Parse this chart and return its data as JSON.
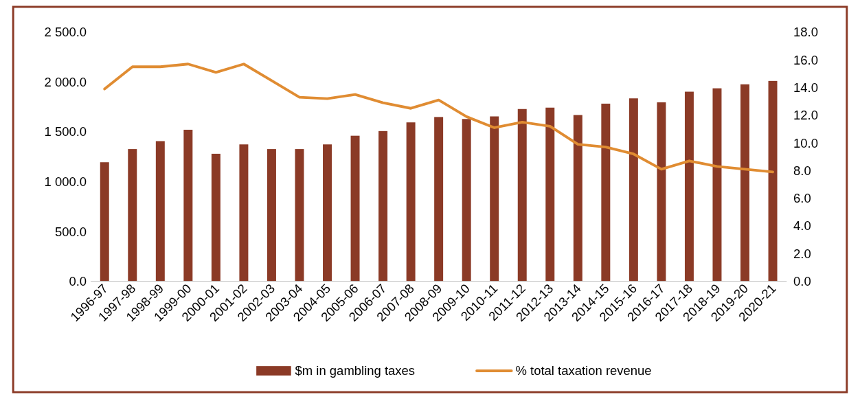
{
  "chart_data": {
    "type": "bar",
    "categories": [
      "1996-97",
      "1997-98",
      "1998-99",
      "1999-00",
      "2000-01",
      "2001-02",
      "2002-03",
      "2003-04",
      "2004-05",
      "2005-06",
      "2006-07",
      "2007-08",
      "2008-09",
      "2009-10",
      "2010-11",
      "2011-12",
      "2012-13",
      "2013-14",
      "2014-15",
      "2015-16",
      "2016-17",
      "2017-18",
      "2018-19",
      "2019-20",
      "2020-21"
    ],
    "series": [
      {
        "name": "$m in gambling taxes",
        "color": "#8b3a26",
        "values": [
          1195,
          1327,
          1407,
          1521,
          1280,
          1374,
          1327,
          1327,
          1374,
          1461,
          1508,
          1595,
          1649,
          1629,
          1655,
          1729,
          1743,
          1669,
          1783,
          1836,
          1796,
          1903,
          1937,
          1977,
          2011
        ]
      },
      {
        "name": "% total taxation revenue",
        "type": "line",
        "axis": "y2",
        "color": "#e08c32",
        "values": [
          13.9,
          15.5,
          15.5,
          15.7,
          15.1,
          15.7,
          14.5,
          13.3,
          13.2,
          13.5,
          12.9,
          12.5,
          13.1,
          11.9,
          11.1,
          11.5,
          11.2,
          9.9,
          9.7,
          9.2,
          8.1,
          8.7,
          8.3,
          8.1,
          7.9
        ]
      }
    ],
    "ylim": [
      0,
      2500
    ],
    "yticks": [
      {
        "value": 0,
        "label": "0.0"
      },
      {
        "value": 500,
        "label": "500.0"
      },
      {
        "value": 1000,
        "label": "1 000.0"
      },
      {
        "value": 1500,
        "label": "1 500.0"
      },
      {
        "value": 2000,
        "label": "2 000.0"
      },
      {
        "value": 2500,
        "label": "2 500.0"
      }
    ],
    "y2lim": [
      0,
      18
    ],
    "y2ticks": [
      {
        "value": 0,
        "label": "0.0"
      },
      {
        "value": 2,
        "label": "2.0"
      },
      {
        "value": 4,
        "label": "4.0"
      },
      {
        "value": 6,
        "label": "6.0"
      },
      {
        "value": 8,
        "label": "8.0"
      },
      {
        "value": 10,
        "label": "10.0"
      },
      {
        "value": 12,
        "label": "12.0"
      },
      {
        "value": 14,
        "label": "14.0"
      },
      {
        "value": 16,
        "label": "16.0"
      },
      {
        "value": 18,
        "label": "18.0"
      }
    ],
    "legend": "bottom",
    "grid": false,
    "marker": "none",
    "line_style": "solid"
  }
}
